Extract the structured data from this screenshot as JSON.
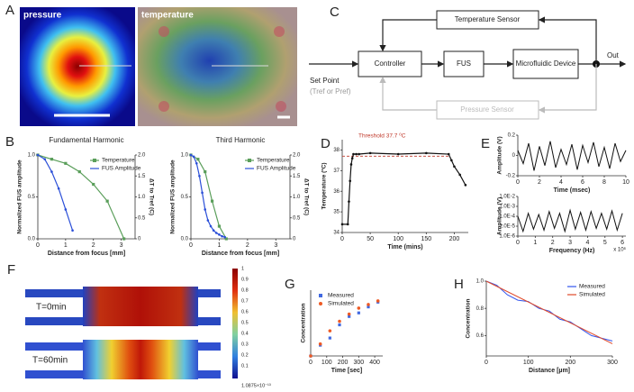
{
  "panel_labels": [
    "A",
    "B",
    "C",
    "D",
    "E",
    "F",
    "G",
    "H"
  ],
  "image_labels": [
    "pressure",
    "temperature"
  ],
  "diagram": {
    "nodes": [
      "Temperature Sensor",
      "Controller",
      "FUS",
      "Microfluidic Device",
      "Pressure Sensor"
    ],
    "set_point": "Set Point",
    "set_point_note": "(Tref or Pref)",
    "output": "Out"
  },
  "simulation": {
    "labels": [
      "T=0min",
      "T=60min"
    ],
    "colorbar_ticks": [
      "1",
      "0.9",
      "0.8",
      "0.7",
      "0.6",
      "0.5",
      "0.4",
      "0.3",
      "0.2",
      "0.1",
      "1.0875×10⁻¹³"
    ]
  },
  "chart_data": [
    {
      "type": "line",
      "title": "Fundamental Harmonic",
      "xlabel": "Distance from focus [mm]",
      "ylabel": "Normalized FUS amplitude",
      "y2label": "ΔT to Tref (C)",
      "xlim": [
        0,
        3.5
      ],
      "xticks": [
        0,
        1,
        2,
        3
      ],
      "ylim": [
        0,
        1
      ],
      "yticks": [
        {
          "value": 0,
          "label": "0.0"
        },
        0.5,
        {
          "value": 1,
          "label": "1.0"
        }
      ],
      "y2lim": [
        0,
        2
      ],
      "y2ticks": [
        0,
        0.5,
        {
          "value": 1,
          "label": "1.0"
        },
        1.5,
        {
          "value": 2,
          "label": "2.0"
        }
      ],
      "legend": "upper right",
      "series": [
        {
          "name": "Temperature",
          "color": "#5a9e5a",
          "marker": "square",
          "axis": "y2",
          "x": [
            0,
            0.5,
            1,
            1.5,
            2,
            2.5,
            3.1
          ],
          "values": [
            2.0,
            1.9,
            1.8,
            1.6,
            1.3,
            0.9,
            0
          ]
        },
        {
          "name": "FUS Amplitude",
          "color": "#2b4fd8",
          "marker": "circle",
          "x": [
            0,
            0.25,
            0.5,
            0.75,
            1.0,
            1.25
          ],
          "values": [
            1,
            0.95,
            0.8,
            0.6,
            0.35,
            0.1
          ]
        }
      ]
    },
    {
      "type": "line",
      "title": "Third Harmonic",
      "xlabel": "Distance from focus [mm]",
      "ylabel": "Normalized FUS amplitude",
      "y2label": "ΔT to Tref (C)",
      "xlim": [
        0,
        3.5
      ],
      "xticks": [
        0,
        1,
        2,
        3
      ],
      "ylim": [
        0,
        1
      ],
      "yticks": [
        {
          "value": 0,
          "label": "0.0"
        },
        0.5,
        {
          "value": 1,
          "label": "1.0"
        }
      ],
      "y2lim": [
        0,
        2
      ],
      "y2ticks": [
        0,
        0.5,
        {
          "value": 1,
          "label": "1.0"
        },
        1.5,
        {
          "value": 2,
          "label": "2.0"
        }
      ],
      "legend": "upper right",
      "series": [
        {
          "name": "Temperature",
          "color": "#5a9e5a",
          "marker": "square",
          "axis": "y2",
          "x": [
            0,
            0.25,
            0.5,
            0.75,
            1.0,
            1.25
          ],
          "values": [
            2,
            1.9,
            1.6,
            0.9,
            0.3,
            0
          ]
        },
        {
          "name": "FUS Amplitude",
          "color": "#2b4fd8",
          "marker": "circle",
          "x": [
            0,
            0.1,
            0.2,
            0.3,
            0.4,
            0.5,
            0.6,
            0.7,
            0.8,
            0.9,
            1.0,
            1.1,
            1.2
          ],
          "values": [
            1,
            0.98,
            0.9,
            0.75,
            0.55,
            0.35,
            0.22,
            0.15,
            0.1,
            0.07,
            0.05,
            0.03,
            0.02
          ]
        }
      ]
    },
    {
      "type": "line",
      "xlabel": "Time (mins)",
      "ylabel": "Temperature (ºC)",
      "xlim": [
        0,
        225
      ],
      "xticks": [
        0,
        50,
        100,
        150,
        200
      ],
      "ylim": [
        34,
        38.5
      ],
      "yticks": [
        34,
        35,
        36,
        37,
        38
      ],
      "threshold": {
        "value": 37.7,
        "label": "Threshold 37.7 ⁰C",
        "color": "#c0392b"
      },
      "series": [
        {
          "color": "#111111",
          "marker": "circle",
          "x": [
            0,
            10,
            12,
            14,
            16,
            18,
            20,
            25,
            30,
            50,
            100,
            150,
            190,
            195,
            200,
            210,
            220
          ],
          "values": [
            34.4,
            34.4,
            35.5,
            36.5,
            37.3,
            37.6,
            37.8,
            37.8,
            37.8,
            37.85,
            37.8,
            37.85,
            37.8,
            37.5,
            37.2,
            36.8,
            36.3
          ]
        }
      ]
    },
    {
      "type": "line",
      "xlabel": "Time (msec)",
      "ylabel": "Amplitude (V)",
      "xlim": [
        0,
        10
      ],
      "xticks": [
        0,
        2,
        4,
        6,
        8,
        10
      ],
      "ylim": [
        -0.2,
        0.2
      ],
      "yticks": [
        -0.2,
        0,
        0.2
      ],
      "series": [
        {
          "color": "#111111",
          "marker": "none",
          "x": [
            0,
            0.5,
            1,
            1.5,
            2,
            2.5,
            3,
            3.5,
            4,
            4.5,
            5,
            5.5,
            6,
            6.5,
            7,
            7.5,
            8,
            8.5,
            9,
            9.5,
            10
          ],
          "values": [
            0.05,
            -0.08,
            0.12,
            -0.15,
            0.09,
            -0.1,
            0.14,
            -0.12,
            0.06,
            -0.09,
            0.11,
            -0.14,
            0.1,
            -0.07,
            0.13,
            -0.11,
            0.08,
            -0.13,
            0.12,
            -0.06,
            0.05
          ]
        }
      ]
    },
    {
      "type": "line",
      "xlabel": "Frequency (Hz)",
      "ylabel": "Amplitude (V)",
      "xnote": "x 10⁶",
      "ylog": true,
      "xlim": [
        0,
        6.2
      ],
      "xticks": [
        0,
        1,
        2,
        3,
        4,
        5,
        6
      ],
      "ylim": [
        1e-06,
        0.01
      ],
      "yticks": [
        {
          "value": 1e-06,
          "label": "1.0E-6"
        },
        {
          "value": 1e-05,
          "label": "1.0E-5"
        },
        {
          "value": 0.0001,
          "label": "1.0E-4"
        },
        {
          "value": 0.001,
          "label": "1.0E-3"
        },
        {
          "value": 0.01,
          "label": "1.0E-2"
        }
      ],
      "series": [
        {
          "color": "#111111",
          "marker": "none",
          "x": [
            0,
            0.3,
            0.6,
            0.9,
            1.2,
            1.5,
            1.8,
            2.1,
            2.4,
            2.7,
            3,
            3.3,
            3.6,
            3.9,
            4.2,
            4.5,
            4.8,
            5.1,
            5.4,
            5.7,
            6
          ],
          "values": [
            0.0001,
            3e-06,
            0.0002,
            5e-06,
            0.00015,
            4e-06,
            0.0003,
            6e-06,
            0.0002,
            3e-06,
            0.0004,
            5e-06,
            0.00025,
            4e-06,
            0.0003,
            6e-06,
            0.0002,
            5e-06,
            0.00035,
            4e-06,
            0.0002
          ]
        }
      ]
    },
    {
      "type": "scatter",
      "xlabel": "Time [sec]",
      "ylabel": "Concentration",
      "xlim": [
        0,
        450
      ],
      "xticks": [
        0,
        100,
        200,
        300,
        400
      ],
      "ylim": [
        0,
        0.55
      ],
      "legend": "upper left",
      "series": [
        {
          "name": "Measured",
          "color": "#4169e1",
          "marker": "square",
          "x": [
            0,
            60,
            120,
            180,
            240,
            300,
            360,
            420
          ],
          "values": [
            0,
            0.09,
            0.15,
            0.26,
            0.33,
            0.36,
            0.41,
            0.45
          ]
        },
        {
          "name": "Simulated",
          "color": "#ee5a24",
          "marker": "circle",
          "x": [
            0,
            60,
            120,
            180,
            240,
            300,
            360,
            420
          ],
          "values": [
            0,
            0.1,
            0.21,
            0.29,
            0.35,
            0.4,
            0.43,
            0.46
          ]
        }
      ]
    },
    {
      "type": "line",
      "xlabel": "Distance [µm]",
      "ylabel": "Concentration",
      "xlim": [
        0,
        300
      ],
      "xticks": [
        0,
        100,
        200,
        300
      ],
      "ylim": [
        0.45,
        1.0
      ],
      "yticks": [
        0.6,
        0.8,
        {
          "value": 1,
          "label": "1.0"
        }
      ],
      "legend": "upper right",
      "series": [
        {
          "name": "Measured",
          "color": "#3355ee",
          "marker": "none",
          "x": [
            0,
            25,
            50,
            75,
            100,
            125,
            150,
            175,
            200,
            225,
            250,
            275,
            300
          ],
          "values": [
            1.0,
            0.97,
            0.9,
            0.86,
            0.85,
            0.8,
            0.78,
            0.72,
            0.7,
            0.65,
            0.6,
            0.58,
            0.56
          ]
        },
        {
          "name": "Simulated",
          "color": "#e04a2a",
          "marker": "none",
          "x": [
            0,
            300
          ],
          "values": [
            1.0,
            0.54
          ]
        }
      ]
    }
  ]
}
